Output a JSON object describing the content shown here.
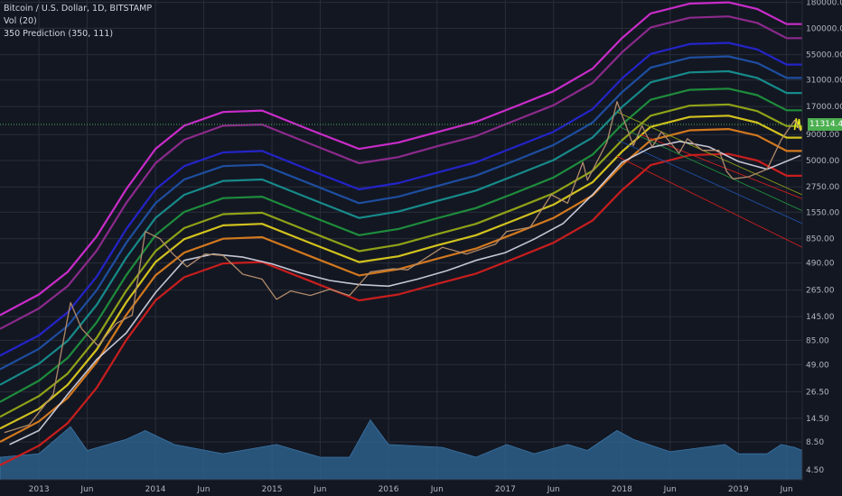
{
  "legend": {
    "symbol": "Bitcoin / U.S. Dollar, 1D, BITSTAMP",
    "volume": "Vol (20)",
    "indicator": "350 Prediction (350, 111)"
  },
  "price_tag": "11314.42",
  "colors": {
    "background": "#131722",
    "grid": "#2a2e39",
    "axis_text": "#b2b5be",
    "candles": "#b08a6a",
    "ma": "#d8d8e8",
    "volume": "#2e5f8a",
    "bands": [
      "#c92cc9",
      "#8c2a8c",
      "#2424c8",
      "#1e4ea0",
      "#178a8a",
      "#1e8c3c",
      "#8fa218",
      "#d2c21e",
      "#d2781e",
      "#c81e1e"
    ]
  },
  "chart_data": {
    "type": "line",
    "title": "Bitcoin / U.S. Dollar, 1D, BITSTAMP",
    "xlabel": "",
    "ylabel": "",
    "scale": "log",
    "ylim": [
      3.6,
      190000
    ],
    "x_range": [
      "2012-09-01",
      "2019-07-20"
    ],
    "x_ticks": [
      {
        "date": "2013-01-01",
        "label": "2013"
      },
      {
        "date": "2013-06-01",
        "label": "Jun"
      },
      {
        "date": "2014-01-01",
        "label": "2014"
      },
      {
        "date": "2014-06-01",
        "label": "Jun"
      },
      {
        "date": "2015-01-01",
        "label": "2015"
      },
      {
        "date": "2015-06-01",
        "label": "Jun"
      },
      {
        "date": "2016-01-01",
        "label": "2016"
      },
      {
        "date": "2016-06-01",
        "label": "Jun"
      },
      {
        "date": "2017-01-01",
        "label": "2017"
      },
      {
        "date": "2017-06-01",
        "label": "Jun"
      },
      {
        "date": "2018-01-01",
        "label": "2018"
      },
      {
        "date": "2018-06-01",
        "label": "Jun"
      },
      {
        "date": "2019-01-01",
        "label": "2019"
      },
      {
        "date": "2019-06-01",
        "label": "Jun"
      }
    ],
    "y_ticks": [
      {
        "value": 180000,
        "label": "180000.00"
      },
      {
        "value": 100000,
        "label": "100000.00"
      },
      {
        "value": 55000,
        "label": "55000.00"
      },
      {
        "value": 31000,
        "label": "31000.00"
      },
      {
        "value": 17000,
        "label": "17000.00"
      },
      {
        "value": 9000,
        "label": "9000.00"
      },
      {
        "value": 5000,
        "label": "5000.00"
      },
      {
        "value": 2750,
        "label": "2750.00"
      },
      {
        "value": 1550,
        "label": "1550.00"
      },
      {
        "value": 850,
        "label": "850.00"
      },
      {
        "value": 490,
        "label": "490.00"
      },
      {
        "value": 265,
        "label": "265.00"
      },
      {
        "value": 145,
        "label": "145.00"
      },
      {
        "value": 85,
        "label": "85.00"
      },
      {
        "value": 49,
        "label": "49.00"
      },
      {
        "value": 26.5,
        "label": "26.50"
      },
      {
        "value": 14.5,
        "label": "14.50"
      },
      {
        "value": 8.5,
        "label": "8.50"
      },
      {
        "value": 4.5,
        "label": "4.50"
      }
    ],
    "last_price": 11314.42,
    "series": [
      {
        "color": "#c92cc9",
        "x": [
          "2012-09-01",
          "2013-01-01",
          "2013-04-01",
          "2013-07-01",
          "2013-10-01",
          "2014-01-01",
          "2014-04-01",
          "2014-08-01",
          "2014-12-01",
          "2015-05-01",
          "2015-10-01",
          "2016-02-01",
          "2016-06-01",
          "2016-10-01",
          "2017-02-01",
          "2017-06-01",
          "2017-10-01",
          "2018-01-01",
          "2018-04-01",
          "2018-08-01",
          "2018-12-01",
          "2019-03-01",
          "2019-06-01",
          "2019-07-20"
        ],
        "values": [
          150,
          240,
          400,
          900,
          2600,
          6500,
          11000,
          15000,
          15500,
          10000,
          6500,
          7500,
          9500,
          12000,
          17000,
          24000,
          40000,
          80000,
          140000,
          175000,
          180000,
          155000,
          110000,
          110000
        ]
      },
      {
        "color": "#8c2a8c",
        "x": [
          "2012-09-01",
          "2013-01-01",
          "2013-04-01",
          "2013-07-01",
          "2013-10-01",
          "2014-01-01",
          "2014-04-01",
          "2014-08-01",
          "2014-12-01",
          "2015-05-01",
          "2015-10-01",
          "2016-02-01",
          "2016-06-01",
          "2016-10-01",
          "2017-02-01",
          "2017-06-01",
          "2017-10-01",
          "2018-01-01",
          "2018-04-01",
          "2018-08-01",
          "2018-12-01",
          "2019-03-01",
          "2019-06-01",
          "2019-07-20"
        ],
        "values": [
          110,
          175,
          290,
          650,
          1900,
          4700,
          8000,
          11000,
          11300,
          7300,
          4700,
          5400,
          6900,
          8700,
          12400,
          17500,
          29000,
          58000,
          102000,
          127000,
          131000,
          113000,
          80000,
          80000
        ]
      },
      {
        "color": "#2424c8",
        "x": [
          "2012-09-01",
          "2013-01-01",
          "2013-04-01",
          "2013-07-01",
          "2013-10-01",
          "2014-01-01",
          "2014-04-01",
          "2014-08-01",
          "2014-12-01",
          "2015-05-01",
          "2015-10-01",
          "2016-02-01",
          "2016-06-01",
          "2016-10-01",
          "2017-02-01",
          "2017-06-01",
          "2017-10-01",
          "2018-01-01",
          "2018-04-01",
          "2018-08-01",
          "2018-12-01",
          "2019-03-01",
          "2019-06-01",
          "2019-07-20"
        ],
        "values": [
          60,
          95,
          160,
          360,
          1050,
          2600,
          4400,
          6000,
          6200,
          4000,
          2600,
          3000,
          3800,
          4800,
          6800,
          9600,
          16000,
          32000,
          56000,
          70000,
          72000,
          62000,
          44000,
          44000
        ]
      },
      {
        "color": "#1e4ea0",
        "x": [
          "2012-09-01",
          "2013-01-01",
          "2013-04-01",
          "2013-07-01",
          "2013-10-01",
          "2014-01-01",
          "2014-04-01",
          "2014-08-01",
          "2014-12-01",
          "2015-05-01",
          "2015-10-01",
          "2016-02-01",
          "2016-06-01",
          "2016-10-01",
          "2017-02-01",
          "2017-06-01",
          "2017-10-01",
          "2018-01-01",
          "2018-04-01",
          "2018-08-01",
          "2018-12-01",
          "2019-03-01",
          "2019-06-01",
          "2019-07-20"
        ],
        "values": [
          44,
          70,
          118,
          265,
          770,
          1900,
          3250,
          4400,
          4550,
          2950,
          1900,
          2200,
          2800,
          3550,
          5000,
          7100,
          11800,
          23500,
          41000,
          51500,
          53000,
          45500,
          32500,
          32500
        ]
      },
      {
        "color": "#178a8a",
        "x": [
          "2012-09-01",
          "2013-01-01",
          "2013-04-01",
          "2013-07-01",
          "2013-10-01",
          "2014-01-01",
          "2014-04-01",
          "2014-08-01",
          "2014-12-01",
          "2015-05-01",
          "2015-10-01",
          "2016-02-01",
          "2016-06-01",
          "2016-10-01",
          "2017-02-01",
          "2017-06-01",
          "2017-10-01",
          "2018-01-01",
          "2018-04-01",
          "2018-08-01",
          "2018-12-01",
          "2019-03-01",
          "2019-06-01",
          "2019-07-20"
        ],
        "values": [
          31,
          50,
          84,
          190,
          550,
          1360,
          2300,
          3150,
          3250,
          2100,
          1360,
          1570,
          2000,
          2530,
          3570,
          5050,
          8400,
          16800,
          29400,
          36800,
          37800,
          32500,
          23100,
          23100
        ]
      },
      {
        "color": "#1e8c3c",
        "x": [
          "2012-09-01",
          "2013-01-01",
          "2013-04-01",
          "2013-07-01",
          "2013-10-01",
          "2014-01-01",
          "2014-04-01",
          "2014-08-01",
          "2014-12-01",
          "2015-05-01",
          "2015-10-01",
          "2016-02-01",
          "2016-06-01",
          "2016-10-01",
          "2017-02-01",
          "2017-06-01",
          "2017-10-01",
          "2018-01-01",
          "2018-04-01",
          "2018-08-01",
          "2018-12-01",
          "2019-03-01",
          "2019-06-01",
          "2019-07-20"
        ],
        "values": [
          21,
          34,
          57,
          128,
          370,
          920,
          1560,
          2130,
          2200,
          1420,
          920,
          1060,
          1350,
          1700,
          2400,
          3400,
          5700,
          11300,
          19800,
          24800,
          25500,
          22000,
          15600,
          15600
        ]
      },
      {
        "color": "#8fa218",
        "x": [
          "2012-09-01",
          "2013-01-01",
          "2013-04-01",
          "2013-07-01",
          "2013-10-01",
          "2014-01-01",
          "2014-04-01",
          "2014-08-01",
          "2014-12-01",
          "2015-05-01",
          "2015-10-01",
          "2016-02-01",
          "2016-06-01",
          "2016-10-01",
          "2017-02-01",
          "2017-06-01",
          "2017-10-01",
          "2018-01-01",
          "2018-04-01",
          "2018-08-01",
          "2018-12-01",
          "2019-03-01",
          "2019-06-01",
          "2019-07-20"
        ],
        "values": [
          15,
          24,
          40,
          90,
          260,
          640,
          1080,
          1480,
          1530,
          990,
          640,
          740,
          940,
          1190,
          1680,
          2380,
          3950,
          7900,
          13800,
          17300,
          17800,
          15300,
          10900,
          10900
        ]
      },
      {
        "color": "#d2c21e",
        "x": [
          "2012-09-01",
          "2013-01-01",
          "2013-04-01",
          "2013-07-01",
          "2013-10-01",
          "2014-01-01",
          "2014-04-01",
          "2014-08-01",
          "2014-12-01",
          "2015-05-01",
          "2015-10-01",
          "2016-02-01",
          "2016-06-01",
          "2016-10-01",
          "2017-02-01",
          "2017-06-01",
          "2017-10-01",
          "2018-01-01",
          "2018-04-01",
          "2018-08-01",
          "2018-12-01",
          "2019-03-01",
          "2019-06-01",
          "2019-07-20"
        ],
        "values": [
          11.5,
          18,
          31,
          69,
          200,
          500,
          840,
          1150,
          1190,
          770,
          500,
          570,
          730,
          920,
          1300,
          1840,
          3050,
          6100,
          10700,
          13400,
          13800,
          11800,
          8400,
          8400
        ]
      },
      {
        "color": "#d2781e",
        "x": [
          "2012-09-01",
          "2013-01-01",
          "2013-04-01",
          "2013-07-01",
          "2013-10-01",
          "2014-01-01",
          "2014-04-01",
          "2014-08-01",
          "2014-12-01",
          "2015-05-01",
          "2015-10-01",
          "2016-02-01",
          "2016-06-01",
          "2016-10-01",
          "2017-02-01",
          "2017-06-01",
          "2017-10-01",
          "2018-01-01",
          "2018-04-01",
          "2018-08-01",
          "2018-12-01",
          "2019-03-01",
          "2019-06-01",
          "2019-07-20"
        ],
        "values": [
          8.5,
          13.5,
          23,
          52,
          150,
          370,
          620,
          850,
          880,
          570,
          370,
          425,
          540,
          680,
          960,
          1360,
          2260,
          4500,
          7900,
          9900,
          10200,
          8800,
          6200,
          6200
        ]
      },
      {
        "color": "#c81e1e",
        "x": [
          "2012-09-01",
          "2013-01-01",
          "2013-04-01",
          "2013-07-01",
          "2013-10-01",
          "2014-01-01",
          "2014-04-01",
          "2014-08-01",
          "2014-12-01",
          "2015-05-01",
          "2015-10-01",
          "2016-02-01",
          "2016-06-01",
          "2016-10-01",
          "2017-02-01",
          "2017-06-01",
          "2017-10-01",
          "2018-01-01",
          "2018-04-01",
          "2018-08-01",
          "2018-12-01",
          "2019-03-01",
          "2019-06-01",
          "2019-07-20"
        ],
        "values": [
          5,
          7.8,
          13,
          29,
          85,
          210,
          355,
          485,
          500,
          325,
          210,
          240,
          305,
          385,
          545,
          775,
          1280,
          2550,
          4500,
          5650,
          5800,
          5000,
          3540,
          3540
        ]
      },
      {
        "color": "#d8d8e8",
        "x": [
          "2012-10-01",
          "2013-01-01",
          "2013-04-01",
          "2013-07-01",
          "2013-10-01",
          "2014-01-01",
          "2014-04-01",
          "2014-07-01",
          "2014-10-01",
          "2015-01-01",
          "2015-04-01",
          "2015-07-01",
          "2015-10-01",
          "2016-01-01",
          "2016-04-01",
          "2016-07-01",
          "2016-10-01",
          "2017-01-01",
          "2017-04-01",
          "2017-07-01",
          "2017-10-01",
          "2018-01-01",
          "2018-04-01",
          "2018-07-01",
          "2018-10-01",
          "2019-01-01",
          "2019-04-01",
          "2019-07-15"
        ],
        "values": [
          8,
          11,
          25,
          55,
          100,
          250,
          520,
          600,
          560,
          480,
          390,
          330,
          300,
          290,
          340,
          410,
          520,
          620,
          840,
          1200,
          2300,
          4800,
          6700,
          7700,
          6800,
          4900,
          4100,
          5600
        ]
      },
      {
        "color": "#b08a6a",
        "x": [
          "2012-09-15",
          "2012-12-01",
          "2013-02-15",
          "2013-04-10",
          "2013-05-15",
          "2013-07-05",
          "2013-09-01",
          "2013-10-20",
          "2013-11-30",
          "2014-01-15",
          "2014-02-25",
          "2014-04-10",
          "2014-06-05",
          "2014-08-01",
          "2014-10-01",
          "2014-12-01",
          "2015-01-15",
          "2015-03-01",
          "2015-05-01",
          "2015-07-01",
          "2015-09-01",
          "2015-11-05",
          "2016-01-15",
          "2016-03-01",
          "2016-06-18",
          "2016-09-01",
          "2016-12-01",
          "2017-01-05",
          "2017-03-20",
          "2017-05-25",
          "2017-07-15",
          "2017-09-01",
          "2017-09-15",
          "2017-11-15",
          "2017-12-17",
          "2018-02-06",
          "2018-03-05",
          "2018-04-06",
          "2018-05-05",
          "2018-06-29",
          "2018-07-25",
          "2018-09-10",
          "2018-11-01",
          "2018-11-25",
          "2018-12-15",
          "2019-02-01",
          "2019-04-01",
          "2019-05-15",
          "2019-06-26",
          "2019-07-15"
        ],
        "values": [
          10.5,
          12.5,
          25,
          200,
          110,
          75,
          125,
          150,
          1000,
          850,
          600,
          450,
          600,
          580,
          380,
          340,
          215,
          260,
          235,
          270,
          235,
          400,
          430,
          420,
          700,
          600,
          750,
          1000,
          1100,
          2300,
          1900,
          4800,
          3200,
          7500,
          19000,
          7000,
          11000,
          6800,
          9600,
          5900,
          8200,
          6300,
          6300,
          3900,
          3300,
          3450,
          4100,
          8000,
          12400,
          9800
        ]
      },
      {
        "color": "#2e5f8a",
        "x": [
          "2012-09-01",
          "2013-01-01",
          "2013-04-10",
          "2013-06-01",
          "2013-10-01",
          "2013-11-30",
          "2014-03-01",
          "2014-08-01",
          "2015-01-15",
          "2015-06-01",
          "2015-09-01",
          "2015-11-05",
          "2016-01-01",
          "2016-06-18",
          "2016-10-01",
          "2017-01-05",
          "2017-04-01",
          "2017-07-15",
          "2017-09-15",
          "2017-12-17",
          "2018-02-06",
          "2018-06-01",
          "2018-11-20",
          "2019-01-01",
          "2019-04-01",
          "2019-05-15",
          "2019-06-26",
          "2019-07-20"
        ],
        "values": [
          6,
          6.5,
          12,
          7,
          9,
          11,
          8,
          6.5,
          8,
          6,
          6,
          14,
          8,
          7.5,
          6,
          8,
          6.5,
          8,
          7,
          11,
          9,
          6.8,
          8,
          6.5,
          6.5,
          8,
          7.5,
          7
        ]
      }
    ],
    "regression_lines": [
      {
        "color": "#c81e1e",
        "x": [
          "2017-12-17",
          "2019-07-20"
        ],
        "values": [
          5500,
          700
        ]
      },
      {
        "color": "#1e4ea0",
        "x": [
          "2017-12-17",
          "2019-07-20"
        ],
        "values": [
          8000,
          1200
        ]
      },
      {
        "color": "#1e8c3c",
        "x": [
          "2017-12-17",
          "2019-07-20"
        ],
        "values": [
          11000,
          1600
        ]
      },
      {
        "color": "#8fa218",
        "x": [
          "2017-12-17",
          "2019-07-20"
        ],
        "values": [
          15000,
          2300
        ]
      },
      {
        "color": "#c81e1e",
        "x": [
          "2018-03-01",
          "2019-07-20"
        ],
        "values": [
          9000,
          2100
        ]
      },
      {
        "color": "#e8e81e",
        "x": [
          "2019-06-26",
          "2019-07-01",
          "2019-07-05",
          "2019-07-10",
          "2019-07-15",
          "2019-07-20"
        ],
        "values": [
          10000,
          13000,
          10500,
          12800,
          9800,
          10800
        ]
      }
    ],
    "grid": true,
    "legend_position": "top-left"
  }
}
